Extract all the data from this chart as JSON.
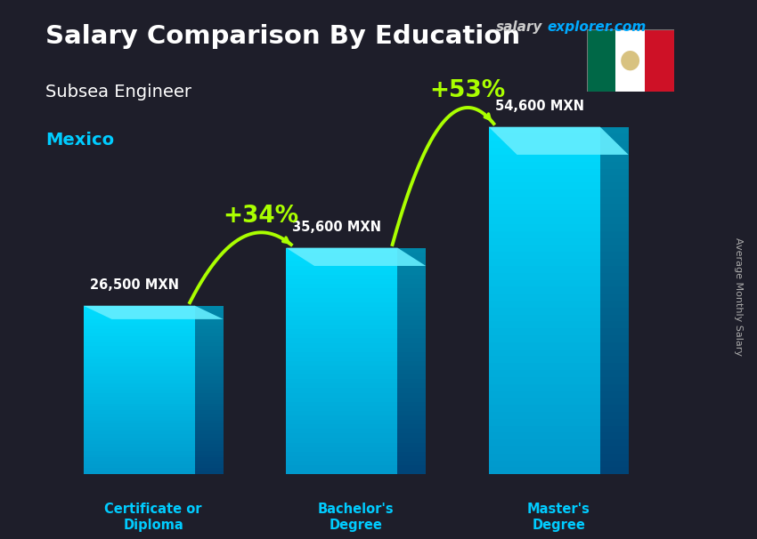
{
  "title": "Salary Comparison By Education",
  "subtitle": "Subsea Engineer",
  "country": "Mexico",
  "website_gray": "salary",
  "website_blue": "explorer.com",
  "ylabel": "Average Monthly Salary",
  "categories": [
    "Certificate or\nDiploma",
    "Bachelor's\nDegree",
    "Master's\nDegree"
  ],
  "values": [
    26500,
    35600,
    54600
  ],
  "value_labels": [
    "26,500 MXN",
    "35,600 MXN",
    "54,600 MXN"
  ],
  "pct_labels": [
    "+34%",
    "+53%"
  ],
  "title_color": "#ffffff",
  "subtitle_color": "#ffffff",
  "country_color": "#00ccff",
  "website_gray_color": "#cccccc",
  "website_blue_color": "#00aaff",
  "value_label_color": "#ffffff",
  "pct_label_color": "#aaff00",
  "category_label_color": "#00ccff",
  "arrow_color": "#aaff00",
  "bar_positions": [
    1.0,
    3.0,
    5.0
  ],
  "bar_width": 1.1,
  "bar_depth": 0.28,
  "bar_depth_y_ratio": 0.08,
  "ylim": [
    0,
    72000
  ],
  "xlim": [
    0,
    6.8
  ],
  "flag_green": "#006847",
  "flag_white": "#ffffff",
  "flag_red": "#ce1126"
}
